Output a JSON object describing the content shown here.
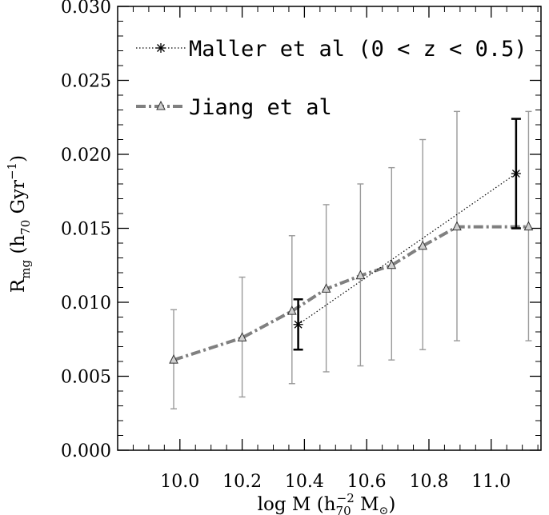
{
  "chart_data": {
    "type": "line",
    "xlabel": "log M (h70−2 M⊙)",
    "ylabel": "Rmg (h70 Gyr−1)",
    "xlim": [
      9.8,
      11.16
    ],
    "ylim": [
      0.0,
      0.03
    ],
    "xticks": [
      "10.0",
      "10.2",
      "10.4",
      "10.6",
      "10.8",
      "11.0"
    ],
    "yticks": [
      "0.000",
      "0.005",
      "0.010",
      "0.015",
      "0.020",
      "0.025",
      "0.030"
    ],
    "grid": false,
    "legend_position": "top-left",
    "series": [
      {
        "name": "Maller et al (0 < z < 0.5)",
        "line_style": "dotted",
        "marker": "asterisk",
        "color": "#000000",
        "x": [
          10.38,
          11.08
        ],
        "y": [
          0.0085,
          0.0187
        ],
        "err_low": [
          0.0068,
          0.015
        ],
        "err_high": [
          0.0102,
          0.0224
        ]
      },
      {
        "name": "Jiang et al",
        "line_style": "dash-dot",
        "marker": "triangle",
        "color": "#808080",
        "x": [
          9.98,
          10.2,
          10.36,
          10.47,
          10.58,
          10.68,
          10.78,
          10.89,
          11.12
        ],
        "y": [
          0.0061,
          0.0076,
          0.0094,
          0.0109,
          0.0118,
          0.0125,
          0.0138,
          0.0151,
          0.0151
        ],
        "err_low": [
          0.0028,
          0.0036,
          0.0045,
          0.0053,
          0.0057,
          0.0061,
          0.0068,
          0.0074,
          0.0074
        ],
        "err_high": [
          0.0095,
          0.0117,
          0.0145,
          0.0166,
          0.018,
          0.0191,
          0.021,
          0.0229,
          0.0229
        ]
      }
    ]
  },
  "legend": {
    "entry1": "Maller et al (0 < z < 0.5)",
    "entry2": "Jiang et al"
  },
  "axes": {
    "ylabel_main": "R",
    "ylabel_sub": "mg",
    "ylabel_paren_open": " (h",
    "ylabel_h_sub": "70",
    "ylabel_gyr": " Gyr",
    "ylabel_sup": "−1",
    "ylabel_paren_close": ")",
    "xlabel_main": "log M (h",
    "xlabel_sub": "70",
    "xlabel_sup": "−2",
    "xlabel_msun": " M",
    "xlabel_sun_symbol": "⊙",
    "xlabel_close": ")"
  }
}
